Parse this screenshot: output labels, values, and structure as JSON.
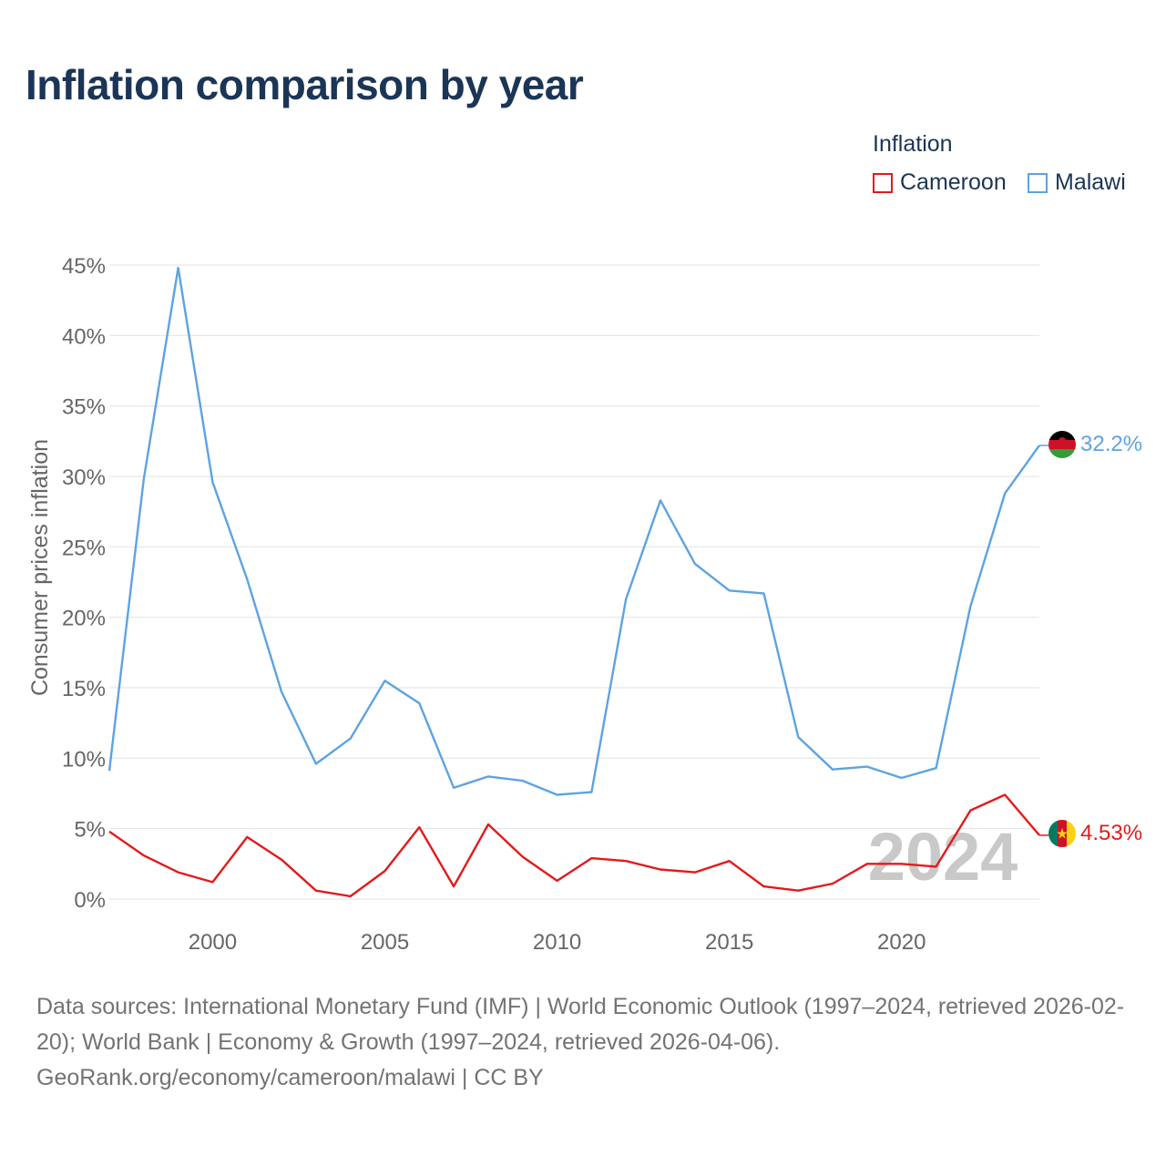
{
  "title": "Inflation comparison by year",
  "legend": {
    "title": "Inflation",
    "items": [
      {
        "label": "Cameroon",
        "color": "#e31a1c"
      },
      {
        "label": "Malawi",
        "color": "#5ea3e0"
      }
    ]
  },
  "watermark_year": "2024",
  "end_labels": {
    "cameroon": "4.53%",
    "malawi": "32.2%"
  },
  "chart_data": {
    "type": "line",
    "title": "Inflation comparison by year",
    "xlabel": "",
    "ylabel": "Consumer prices inflation",
    "x": [
      1997,
      1998,
      1999,
      2000,
      2001,
      2002,
      2003,
      2004,
      2005,
      2006,
      2007,
      2008,
      2009,
      2010,
      2011,
      2012,
      2013,
      2014,
      2015,
      2016,
      2017,
      2018,
      2019,
      2020,
      2021,
      2022,
      2023,
      2024
    ],
    "xlim": [
      1997,
      2024
    ],
    "ylim": [
      0,
      45
    ],
    "xticks": [
      2000,
      2005,
      2010,
      2015,
      2020
    ],
    "yticks": [
      0,
      5,
      10,
      15,
      20,
      25,
      30,
      35,
      40,
      45
    ],
    "ytick_labels": [
      "0%",
      "5%",
      "10%",
      "15%",
      "20%",
      "25%",
      "30%",
      "35%",
      "40%",
      "45%"
    ],
    "grid": true,
    "series": [
      {
        "name": "Malawi",
        "color": "#5ea3e0",
        "values": [
          9.1,
          29.8,
          44.8,
          29.6,
          22.7,
          14.7,
          9.6,
          11.4,
          15.5,
          13.9,
          7.9,
          8.7,
          8.4,
          7.4,
          7.6,
          21.3,
          28.3,
          23.8,
          21.9,
          21.7,
          11.5,
          9.2,
          9.4,
          8.6,
          9.3,
          20.8,
          28.8,
          32.2
        ]
      },
      {
        "name": "Cameroon",
        "color": "#e31a1c",
        "values": [
          4.8,
          3.1,
          1.9,
          1.2,
          4.4,
          2.8,
          0.6,
          0.2,
          2.0,
          5.1,
          0.9,
          5.3,
          3.0,
          1.3,
          2.9,
          2.7,
          2.1,
          1.9,
          2.7,
          0.9,
          0.6,
          1.1,
          2.5,
          2.5,
          2.3,
          6.3,
          7.4,
          4.53
        ]
      }
    ]
  },
  "source": {
    "line1": "Data sources: International Monetary Fund (IMF) | World Economic Outlook (1997–2024, retrieved 2026-02-20); World Bank | Economy & Growth (1997–2024, retrieved 2026-04-06).",
    "line2": "GeoRank.org/economy/cameroon/malawi | CC BY"
  }
}
